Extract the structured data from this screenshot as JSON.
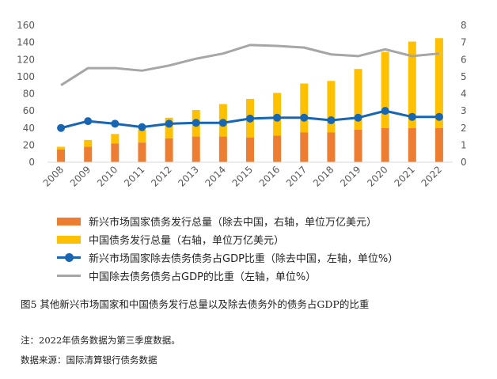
{
  "chart_data": {
    "type": "bar+line",
    "categories": [
      "2008",
      "2009",
      "2010",
      "2011",
      "2012",
      "2013",
      "2014",
      "2015",
      "2016",
      "2017",
      "2018",
      "2019",
      "2020",
      "2021",
      "2022"
    ],
    "series": [
      {
        "name": "新兴市场国家债务发行总量（除去中国，右轴，单位万亿美元）",
        "type": "bar",
        "axis": "right",
        "color": "#ed7d31",
        "values": [
          0.75,
          0.9,
          1.1,
          1.15,
          1.4,
          1.5,
          1.5,
          1.45,
          1.55,
          1.75,
          1.75,
          1.9,
          2.0,
          2.0,
          2.0
        ]
      },
      {
        "name": "中国债务发行总量（右轴，单位万亿美元）",
        "type": "bar",
        "axis": "right",
        "color": "#ffc000",
        "values": [
          0.15,
          0.4,
          0.55,
          0.75,
          1.2,
          1.55,
          1.9,
          2.25,
          2.5,
          2.85,
          3.0,
          3.55,
          4.45,
          5.05,
          5.25
        ]
      },
      {
        "name": "新兴市场国家除去债务债务占GDP比重（除去中国，左轴，单位%）",
        "type": "line",
        "axis": "left",
        "color": "#1766b4",
        "markers": true,
        "values": [
          40,
          48,
          45,
          41,
          45,
          46,
          46,
          51,
          52,
          52,
          49,
          52,
          60,
          53,
          53
        ]
      },
      {
        "name": "中国除去债务债务占GDP的比重（左轴，单位%）",
        "type": "line",
        "axis": "left",
        "color": "#a6a6a6",
        "markers": false,
        "values": [
          90,
          110,
          110,
          107,
          113,
          121,
          127,
          137,
          136,
          134,
          126,
          124,
          132,
          124,
          127
        ]
      }
    ],
    "left_axis": {
      "ylim": [
        0,
        160
      ],
      "ticks": [
        0,
        20,
        40,
        60,
        80,
        100,
        120,
        140,
        160
      ]
    },
    "right_axis": {
      "ylim": [
        0,
        8
      ],
      "ticks": [
        0,
        1,
        2,
        3,
        4,
        5,
        6,
        7,
        8
      ]
    },
    "stacked": true,
    "grid": false,
    "legend_position": "bottom"
  },
  "caption": {
    "figure_title": "图5  其他新兴市场国家和中国债务发行总量以及除去债务外的债务占GDP的比重",
    "note": "注：2022年债务数据为第三季度数据。",
    "source": "数据来源：国际清算银行债务数据"
  }
}
